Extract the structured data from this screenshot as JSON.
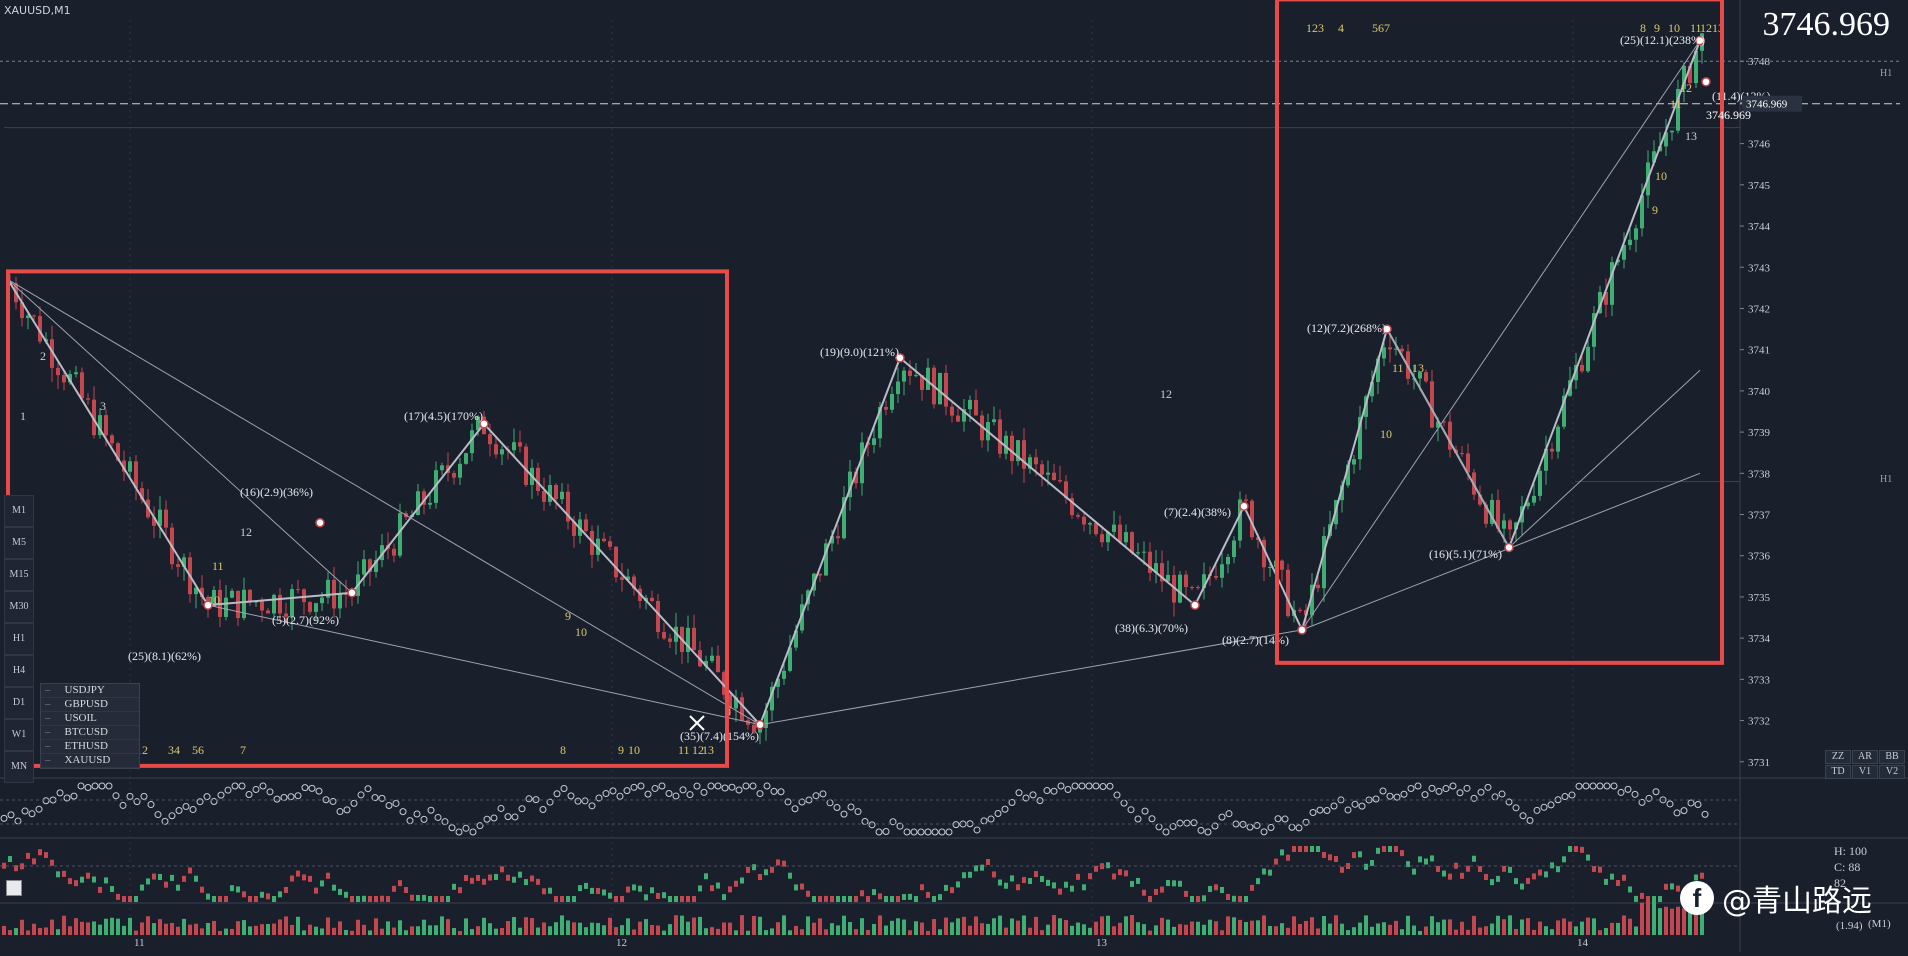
{
  "symbol_title": "XAUUSD,M1",
  "big_price": "3746.969",
  "price_line_label": "3746.969",
  "price_pill": "3746.969",
  "watchlist": [
    "USDJPY",
    "GBPUSD",
    "USOIL",
    "BTCUSD",
    "ETHUSD",
    "XAUUSD"
  ],
  "timeframes": [
    "M1",
    "M5",
    "M15",
    "M30",
    "H1",
    "H4",
    "D1",
    "W1",
    "MN"
  ],
  "zz_panel": [
    "ZZ",
    "AR",
    "BB",
    "TD",
    "V1",
    "V2"
  ],
  "hc_labels": {
    "h": "H: 100",
    "c": "C: 88",
    "v": "82"
  },
  "bottom_pct": "(1.94)",
  "corner_label": "(M1)",
  "watermark_text": "@青山路远",
  "h1_label": "H1",
  "h1_label_2": "H1",
  "x_axis_labels": [
    "11",
    "12",
    "13",
    "14"
  ],
  "top_counts": [
    "123",
    "4",
    "567",
    "8",
    "9",
    "10",
    "11",
    "12",
    "13"
  ],
  "left_counts": [
    "12",
    "34",
    "56",
    "7",
    "8",
    "9",
    "10",
    "11",
    "12",
    "13"
  ],
  "swing_labels": [
    "(25)(8.1)(62%)",
    "(5)(2.7)(92%)",
    "(16)(2.9)(36%)",
    "(17)(4.5)(170%)",
    "(35)(7.4)(154%)",
    "(19)(9.0)(121%)",
    "(38)(6.3)(70%)",
    "(7)(2.4)(38%)",
    "(8)(2.7)(14%)",
    "(12)(7.2)(268%)",
    "(16)(5.1)(71%)",
    "(25)(12.1)(238%)",
    "(11.4)(12%)"
  ],
  "chart_data": {
    "type": "candlestick",
    "y_ticks": [
      3731,
      3732,
      3733,
      3734,
      3735,
      3736,
      3737,
      3738,
      3739,
      3740,
      3741,
      3742,
      3743,
      3744,
      3745,
      3746,
      3747,
      3748
    ],
    "ylim": [
      3730.8,
      3749.0
    ],
    "current_price": 3746.969,
    "colors": {
      "up": "#3fae73",
      "down": "#c4464e",
      "zigzag": "#b9bcc6",
      "highlight": "#e84a4a",
      "count": "#d9c96a"
    },
    "zigzag_points": [
      {
        "x": 8,
        "y": 3742.7
      },
      {
        "x": 208,
        "y": 3734.8
      },
      {
        "x": 352,
        "y": 3735.1
      },
      {
        "x": 484,
        "y": 3739.2
      },
      {
        "x": 760,
        "y": 3731.9
      },
      {
        "x": 900,
        "y": 3740.8
      },
      {
        "x": 1195,
        "y": 3734.8
      },
      {
        "x": 1244,
        "y": 3737.2
      },
      {
        "x": 1302,
        "y": 3734.2
      },
      {
        "x": 1387,
        "y": 3741.5
      },
      {
        "x": 1509,
        "y": 3736.2
      },
      {
        "x": 1700,
        "y": 3748.5
      }
    ],
    "highlight_boxes": [
      {
        "x0": 8,
        "x1": 727,
        "y0": 3742.9,
        "y1": 3730.9
      },
      {
        "x0": 1277,
        "x1": 1722,
        "y0": 3749.5,
        "y1": 3733.4
      }
    ]
  }
}
